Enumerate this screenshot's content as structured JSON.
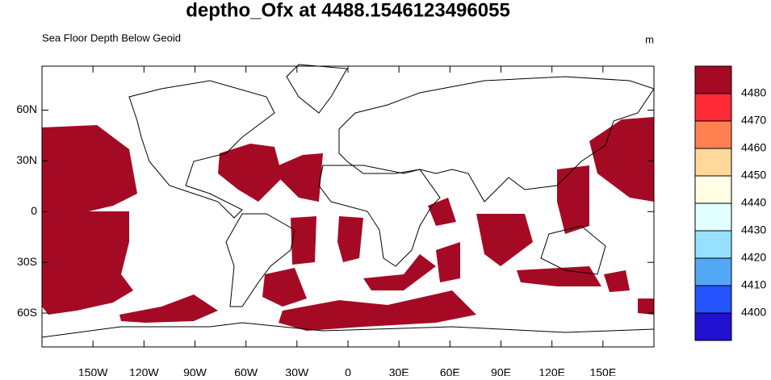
{
  "chart_data": {
    "type": "map",
    "title": "deptho_Ofx at 4488.1546123496055",
    "subtitle": "Sea Floor Depth Below Geoid",
    "units": "m",
    "xlim": [
      -180,
      180
    ],
    "ylim": [
      -80,
      86
    ],
    "xticks": [
      {
        "value": -150,
        "label": "150W"
      },
      {
        "value": -120,
        "label": "120W"
      },
      {
        "value": -90,
        "label": "90W"
      },
      {
        "value": -60,
        "label": "60W"
      },
      {
        "value": -30,
        "label": "30W"
      },
      0,
      {
        "value": 30,
        "label": "30E"
      },
      {
        "value": 60,
        "label": "60E"
      },
      {
        "value": 90,
        "label": "90E"
      },
      {
        "value": 120,
        "label": "120E"
      },
      {
        "value": 150,
        "label": "150E"
      }
    ],
    "yticks": [
      {
        "value": -60,
        "label": "60S"
      },
      {
        "value": -30,
        "label": "30S"
      },
      0,
      {
        "value": 30,
        "label": "30N"
      },
      {
        "value": 60,
        "label": "60N"
      }
    ],
    "colorbar": {
      "levels": [
        4400,
        4410,
        4420,
        4430,
        4440,
        4450,
        4460,
        4470,
        4480
      ],
      "colors": [
        "#2210d0",
        "#2554ff",
        "#52a8f5",
        "#98e0ff",
        "#e2ffff",
        "#fffde4",
        "#ffd89a",
        "#ff8050",
        "#ff2a35",
        "#a50a25"
      ]
    }
  }
}
